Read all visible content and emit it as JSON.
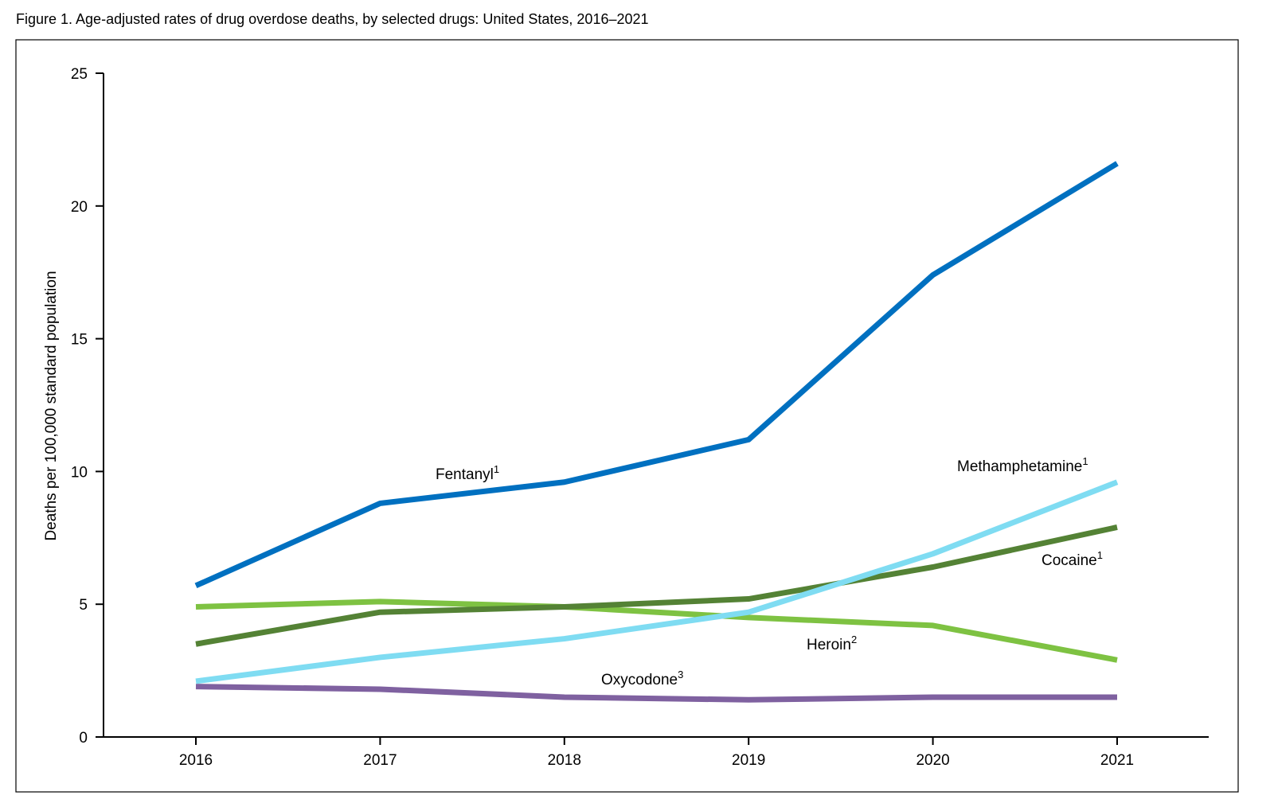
{
  "chart_data": {
    "type": "line",
    "title": "Figure 1. Age-adjusted rates of drug overdose deaths, by selected drugs: United States, 2016–2021",
    "xlabel": "",
    "ylabel": "Deaths per 100,000 standard population",
    "x": [
      2016,
      2017,
      2018,
      2019,
      2020,
      2021
    ],
    "x_tick_labels": [
      "2016",
      "2017",
      "2018",
      "2019",
      "2020",
      "2021"
    ],
    "y_tick_labels": [
      "0",
      "5",
      "10",
      "15",
      "20",
      "25"
    ],
    "y_ticks": [
      0,
      5,
      10,
      15,
      20,
      25
    ],
    "ylim": [
      0,
      25
    ],
    "grid": false,
    "legend": "inline labels",
    "series": [
      {
        "name": "Fentanyl",
        "sup": "1",
        "color": "#0070c0",
        "values": [
          5.7,
          8.8,
          9.6,
          11.2,
          17.4,
          21.6
        ]
      },
      {
        "name": "Methamphetamine",
        "sup": "1",
        "color": "#7fdcf2",
        "values": [
          2.1,
          3.0,
          3.7,
          4.7,
          6.9,
          9.6
        ]
      },
      {
        "name": "Cocaine",
        "sup": "1",
        "color": "#548235",
        "values": [
          3.5,
          4.7,
          4.9,
          5.2,
          6.4,
          7.9
        ]
      },
      {
        "name": "Heroin",
        "sup": "2",
        "color": "#7ec242",
        "values": [
          4.9,
          5.1,
          4.9,
          4.5,
          4.2,
          2.9
        ]
      },
      {
        "name": "Oxycodone",
        "sup": "3",
        "color": "#7f61a0",
        "values": [
          1.9,
          1.8,
          1.5,
          1.4,
          1.5,
          1.5
        ]
      }
    ]
  }
}
